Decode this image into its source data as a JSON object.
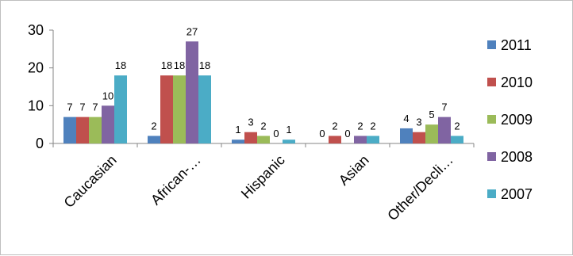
{
  "chart_data": {
    "type": "bar",
    "title": "",
    "xlabel": "",
    "ylabel": "",
    "categories": [
      "Caucasian",
      "African-…",
      "Hispanic",
      "Asian",
      "Other/Decli…"
    ],
    "series": [
      {
        "name": "2011",
        "color": "#4f81bd",
        "values": [
          7,
          2,
          1,
          0,
          4
        ]
      },
      {
        "name": "2010",
        "color": "#c0504d",
        "values": [
          7,
          18,
          3,
          2,
          3
        ]
      },
      {
        "name": "2009",
        "color": "#9bbb59",
        "values": [
          7,
          18,
          2,
          0,
          5
        ]
      },
      {
        "name": "2008",
        "color": "#8064a2",
        "values": [
          10,
          27,
          0,
          2,
          7
        ]
      },
      {
        "name": "2007",
        "color": "#4bacc6",
        "values": [
          18,
          18,
          1,
          2,
          2
        ]
      }
    ],
    "ylim": [
      0,
      30
    ],
    "yticks": [
      0,
      10,
      20,
      30
    ],
    "grid": false,
    "legend_position": "right"
  }
}
